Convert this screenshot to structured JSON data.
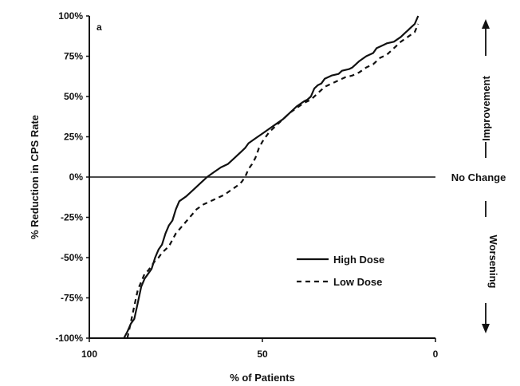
{
  "chart_data": {
    "type": "line",
    "panel_label": "a",
    "xlabel": "% of Patients",
    "ylabel": "% Reduction in CPS Rate",
    "xlim": [
      100,
      0
    ],
    "ylim": [
      -100,
      100
    ],
    "x_reversed": true,
    "x_ticks": [
      100,
      50,
      0
    ],
    "x_tick_labels": [
      "100",
      "50",
      "0"
    ],
    "y_ticks": [
      100,
      75,
      50,
      25,
      0,
      -25,
      -50,
      -75,
      -100
    ],
    "y_tick_labels": [
      "100%",
      "75%",
      "50%",
      "25%",
      "0%",
      "-25%",
      "-50%",
      "-75%",
      "-100%"
    ],
    "reference_line": {
      "y": 0,
      "label": "No Change"
    },
    "side_annotations": {
      "upper": "Improvement",
      "lower": "Worsening"
    },
    "legend_position": "lower-right",
    "series": [
      {
        "name": "High Dose",
        "style": "solid",
        "x": [
          90,
          89,
          88,
          87,
          86,
          85,
          84,
          83,
          82,
          81,
          80,
          79,
          78,
          77,
          76,
          75,
          74,
          72,
          70,
          68,
          66,
          64,
          62,
          60,
          58,
          56,
          55,
          54,
          52,
          50,
          48,
          46,
          44,
          42,
          40,
          38,
          37,
          36,
          35,
          34,
          33,
          32,
          30,
          28,
          27,
          25,
          24,
          23,
          22,
          20,
          18,
          17,
          16,
          15,
          14,
          12,
          10,
          9,
          8,
          7,
          6,
          5
        ],
        "y": [
          -100,
          -96,
          -91,
          -88,
          -78,
          -68,
          -63,
          -60,
          -57,
          -50,
          -45,
          -42,
          -35,
          -30,
          -27,
          -20,
          -15,
          -12,
          -8,
          -4,
          0,
          3,
          6,
          8,
          12,
          16,
          18,
          21,
          24,
          27,
          30,
          33,
          36,
          40,
          44,
          47,
          48,
          50,
          55,
          57,
          58,
          61,
          63,
          64,
          66,
          67,
          68,
          70,
          72,
          75,
          77,
          80,
          81,
          82,
          83,
          84,
          87,
          89,
          91,
          93,
          95,
          100
        ]
      },
      {
        "name": "Low Dose",
        "style": "dashed",
        "x": [
          89,
          88,
          87,
          86,
          85,
          84,
          83,
          82,
          81,
          80,
          79,
          77,
          75,
          73,
          71,
          69,
          67,
          65,
          63,
          61,
          59,
          57,
          56,
          55,
          54,
          53,
          52,
          51,
          50,
          49,
          48,
          46,
          44,
          42,
          40,
          38,
          36,
          34,
          32,
          30,
          28,
          26,
          24,
          22,
          20,
          18,
          16,
          14,
          12,
          10,
          8,
          6,
          5
        ],
        "y": [
          -100,
          -90,
          -80,
          -70,
          -65,
          -60,
          -58,
          -55,
          -52,
          -50,
          -47,
          -43,
          -35,
          -30,
          -25,
          -20,
          -17,
          -15,
          -13,
          -11,
          -8,
          -5,
          -3,
          0,
          5,
          8,
          12,
          18,
          22,
          25,
          28,
          32,
          36,
          40,
          43,
          46,
          48,
          52,
          56,
          58,
          60,
          62,
          63,
          65,
          68,
          70,
          74,
          76,
          80,
          84,
          87,
          90,
          95
        ]
      }
    ]
  }
}
